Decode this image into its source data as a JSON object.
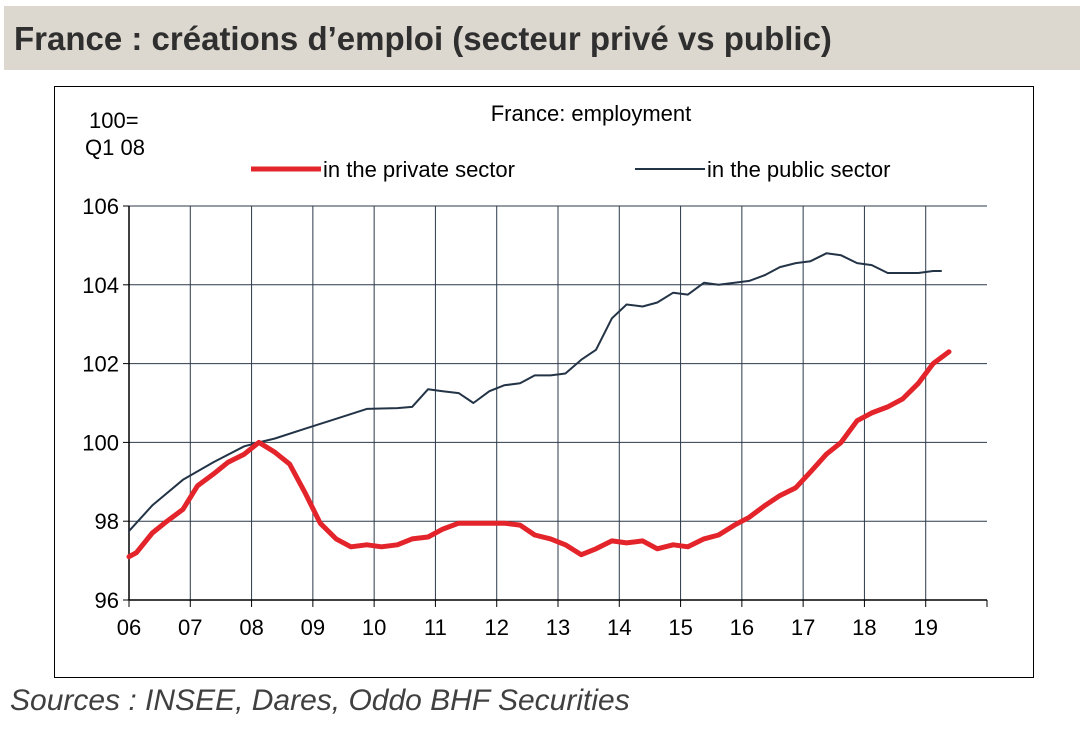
{
  "header": {
    "title": "France : créations d’emploi (secteur privé vs public)"
  },
  "sources": "Sources : INSEE, Dares, Oddo BHF Securities",
  "colors": {
    "header_bg": "#ddd8cf",
    "private": "#e3242b",
    "public": "#243447",
    "grid": "#2b3a4a"
  },
  "chart_data": {
    "type": "line",
    "title": "France: employment",
    "unit_label": [
      "100=",
      "Q1 08"
    ],
    "legend_position": "top",
    "grid": true,
    "ylim": [
      96,
      106
    ],
    "yticks": [
      96,
      98,
      100,
      102,
      104,
      106
    ],
    "xlim": [
      2006,
      2020
    ],
    "xticks": [
      2006,
      2007,
      2008,
      2009,
      2010,
      2011,
      2012,
      2013,
      2014,
      2015,
      2016,
      2017,
      2018,
      2019
    ],
    "xtick_labels": [
      "06",
      "07",
      "08",
      "09",
      "10",
      "11",
      "12",
      "13",
      "14",
      "15",
      "16",
      "17",
      "18",
      "19"
    ],
    "series": [
      {
        "name": "in the private sector",
        "color": "#e3242b",
        "x": [
          2006.0,
          2006.12,
          2006.38,
          2006.62,
          2006.88,
          2007.12,
          2007.38,
          2007.62,
          2007.88,
          2008.12,
          2008.38,
          2008.62,
          2008.88,
          2009.12,
          2009.38,
          2009.62,
          2009.88,
          2010.12,
          2010.38,
          2010.62,
          2010.88,
          2011.12,
          2011.38,
          2011.62,
          2011.88,
          2012.12,
          2012.38,
          2012.62,
          2012.88,
          2013.12,
          2013.38,
          2013.62,
          2013.88,
          2014.12,
          2014.38,
          2014.62,
          2014.88,
          2015.12,
          2015.38,
          2015.62,
          2015.88,
          2016.12,
          2016.38,
          2016.62,
          2016.88,
          2017.12,
          2017.38,
          2017.62,
          2017.88,
          2018.12,
          2018.38,
          2018.62,
          2018.88,
          2019.12,
          2019.38
        ],
        "values": [
          97.1,
          97.2,
          97.7,
          98.0,
          98.3,
          98.9,
          99.2,
          99.5,
          99.7,
          100.0,
          99.75,
          99.45,
          98.7,
          97.95,
          97.55,
          97.35,
          97.4,
          97.35,
          97.4,
          97.55,
          97.6,
          97.8,
          97.95,
          97.95,
          97.95,
          97.95,
          97.9,
          97.65,
          97.55,
          97.4,
          97.15,
          97.3,
          97.5,
          97.45,
          97.5,
          97.3,
          97.4,
          97.35,
          97.55,
          97.65,
          97.9,
          98.1,
          98.4,
          98.65,
          98.85,
          99.25,
          99.7,
          100.0,
          100.55,
          100.75,
          100.9,
          101.1,
          101.5,
          102.0,
          102.3
        ]
      },
      {
        "name": "in the public sector",
        "color": "#243447",
        "x": [
          2006.0,
          2006.38,
          2006.88,
          2007.38,
          2007.88,
          2008.12,
          2008.38,
          2008.88,
          2009.38,
          2009.88,
          2010.38,
          2010.62,
          2010.88,
          2011.12,
          2011.38,
          2011.62,
          2011.88,
          2012.12,
          2012.38,
          2012.62,
          2012.88,
          2013.12,
          2013.38,
          2013.62,
          2013.88,
          2014.12,
          2014.38,
          2014.62,
          2014.88,
          2015.12,
          2015.38,
          2015.62,
          2015.88,
          2016.12,
          2016.38,
          2016.62,
          2016.88,
          2017.12,
          2017.38,
          2017.62,
          2017.88,
          2018.12,
          2018.38,
          2018.62,
          2018.88,
          2019.12,
          2019.25
        ],
        "values": [
          97.75,
          98.4,
          99.05,
          99.5,
          99.9,
          100.0,
          100.1,
          100.35,
          100.6,
          100.85,
          100.87,
          100.9,
          101.35,
          101.3,
          101.25,
          101.0,
          101.3,
          101.45,
          101.5,
          101.7,
          101.7,
          101.75,
          102.1,
          102.35,
          103.15,
          103.5,
          103.45,
          103.55,
          103.8,
          103.75,
          104.05,
          104.0,
          104.05,
          104.1,
          104.25,
          104.45,
          104.55,
          104.6,
          104.8,
          104.75,
          104.55,
          104.5,
          104.3,
          104.3,
          104.3,
          104.35,
          104.35
        ]
      }
    ]
  }
}
